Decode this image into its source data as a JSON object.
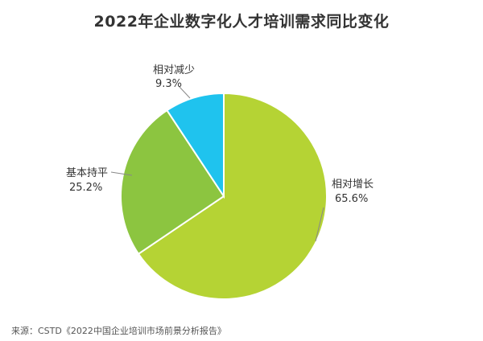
{
  "chart_data": {
    "type": "pie",
    "title": "2022年企业数字化人才培训需求同比变化",
    "slices": [
      {
        "label": "相对增长",
        "value": 65.6,
        "value_text": "65.6%",
        "color": "#B5D334"
      },
      {
        "label": "基本持平",
        "value": 25.2,
        "value_text": "25.2%",
        "color": "#8CC540"
      },
      {
        "label": "相对减少",
        "value": 9.3,
        "value_text": "9.3%",
        "color": "#1FC3EE"
      }
    ],
    "legend": "none"
  },
  "source": "来源：CSTD《2022中国企业培训市场前景分析报告》"
}
